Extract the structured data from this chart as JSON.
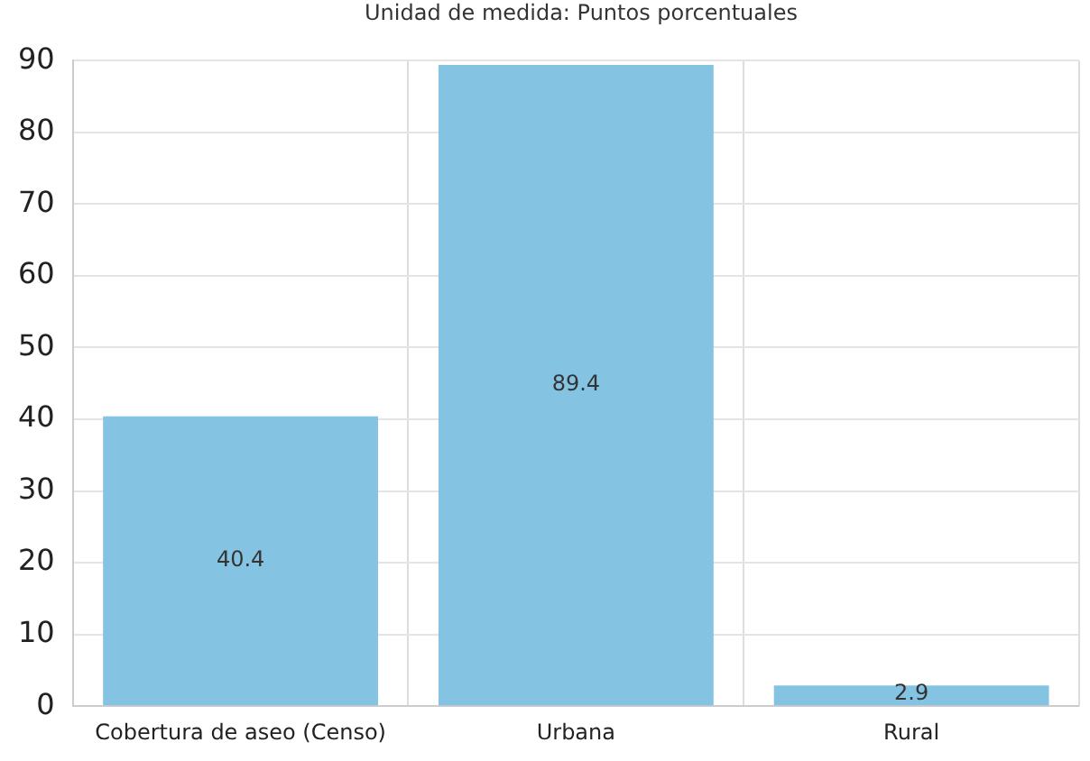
{
  "chart_data": {
    "type": "bar",
    "title": "Unidad de medida: Puntos porcentuales",
    "categories": [
      "Cobertura de aseo (Censo)",
      "Urbana",
      "Rural"
    ],
    "values": [
      40.4,
      89.4,
      2.9
    ],
    "color": "#85c3e2",
    "ylim": [
      0,
      90
    ],
    "yticks": [
      0,
      10,
      20,
      30,
      40,
      50,
      60,
      70,
      80,
      90
    ],
    "grid": true,
    "data_labels": true
  }
}
